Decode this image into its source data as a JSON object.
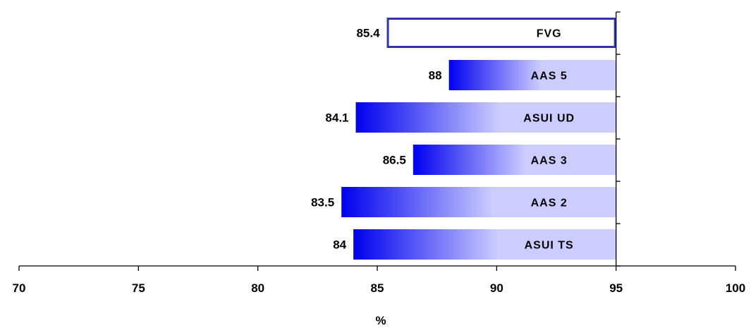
{
  "chart_data": {
    "type": "bar",
    "orientation": "horizontal",
    "categories": [
      "FVG",
      "AAS 5",
      "ASUI UD",
      "AAS 3",
      "AAS 2",
      "ASUI TS"
    ],
    "values": [
      85.4,
      88,
      84.1,
      86.5,
      83.5,
      84
    ],
    "value_labels": [
      "85.4",
      "88",
      "84.1",
      "86.5",
      "83.5",
      "84"
    ],
    "highlight_category": "FVG",
    "xlabel": "%",
    "xlim": [
      70,
      100
    ],
    "bar_end": 95,
    "xticks": [
      70,
      75,
      80,
      85,
      90,
      95,
      100
    ],
    "xtick_labels": [
      "70",
      "75",
      "80",
      "85",
      "90",
      "95",
      "100"
    ],
    "grid": false,
    "colors": {
      "gradient_start": "#0000ee",
      "gradient_end": "#ccccff",
      "highlight_border": "#3333aa",
      "highlight_fill": "#ffffff"
    }
  }
}
